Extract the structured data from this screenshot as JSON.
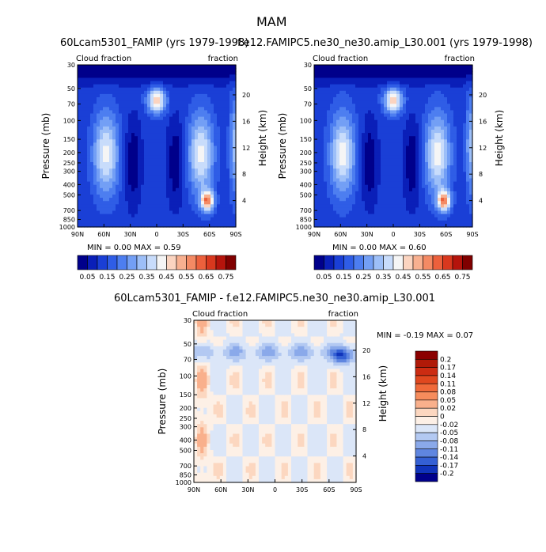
{
  "figure": {
    "title": "MAM"
  },
  "chart_data": [
    {
      "type": "heatmap",
      "title": "60Lcam5301_FAMIP (yrs 1979-1998)",
      "left_label": "Cloud fraction",
      "right_label": "fraction",
      "ylabel": "Pressure (mb)",
      "ylabel_right": "Height (km)",
      "x_ticks": [
        "90N",
        "60N",
        "30N",
        "0",
        "30S",
        "60S",
        "90S"
      ],
      "y_ticks": [
        "30",
        "50",
        "70",
        "100",
        "150",
        "200",
        "250",
        "300",
        "400",
        "500",
        "700",
        "850",
        "1000"
      ],
      "y_right_ticks": [
        "20",
        "16",
        "12",
        "8",
        "4"
      ],
      "min_label": "MIN =",
      "min_value": "0.00",
      "max_label": "MAX =",
      "max_value": "0.59",
      "colorbar_labels": [
        "0.05",
        "0.15",
        "0.25",
        "0.35",
        "0.45",
        "0.55",
        "0.65",
        "0.75"
      ],
      "colors": [
        "#00008b",
        "#0a1fb8",
        "#1a3fd6",
        "#2f5de6",
        "#4d7ef0",
        "#739ff5",
        "#9dbff8",
        "#c8dcfb",
        "#f5f5f5",
        "#fbd4c0",
        "#f8b090",
        "#f48a64",
        "#ec603c",
        "#d9381e",
        "#b5140c",
        "#800000"
      ]
    },
    {
      "type": "heatmap",
      "title": "f.e12.FAMIPC5.ne30_ne30.amip_L30.001 (yrs 1979-1998)",
      "left_label": "Cloud fraction",
      "right_label": "fraction",
      "ylabel": "Pressure (mb)",
      "ylabel_right": "Height (km)",
      "x_ticks": [
        "90N",
        "60N",
        "30N",
        "0",
        "30S",
        "60S",
        "90S"
      ],
      "y_ticks": [
        "30",
        "50",
        "70",
        "100",
        "150",
        "200",
        "250",
        "300",
        "400",
        "500",
        "700",
        "850",
        "1000"
      ],
      "y_right_ticks": [
        "20",
        "16",
        "12",
        "8",
        "4"
      ],
      "min_label": "MIN =",
      "min_value": "0.00",
      "max_label": "MAX =",
      "max_value": "0.60",
      "colorbar_labels": [
        "0.05",
        "0.15",
        "0.25",
        "0.35",
        "0.45",
        "0.55",
        "0.65",
        "0.75"
      ],
      "colors": [
        "#00008b",
        "#0a1fb8",
        "#1a3fd6",
        "#2f5de6",
        "#4d7ef0",
        "#739ff5",
        "#9dbff8",
        "#c8dcfb",
        "#f5f5f5",
        "#fbd4c0",
        "#f8b090",
        "#f48a64",
        "#ec603c",
        "#d9381e",
        "#b5140c",
        "#800000"
      ]
    },
    {
      "type": "heatmap",
      "title": "60Lcam5301_FAMIP - f.e12.FAMIPC5.ne30_ne30.amip_L30.001",
      "left_label": "Cloud fraction",
      "right_label": "fraction",
      "ylabel": "Pressure (mb)",
      "ylabel_right": "Height (km)",
      "x_ticks": [
        "90N",
        "60N",
        "30N",
        "0",
        "30S",
        "60S",
        "90S"
      ],
      "y_ticks": [
        "30",
        "50",
        "70",
        "100",
        "150",
        "200",
        "250",
        "300",
        "400",
        "500",
        "700",
        "850",
        "1000"
      ],
      "y_right_ticks": [
        "20",
        "16",
        "12",
        "8",
        "4"
      ],
      "min_label": "MIN =",
      "min_value": "-0.19",
      "max_label": "MAX =",
      "max_value": "0.07",
      "colorbar_labels": [
        "0.2",
        "0.17",
        "0.14",
        "0.11",
        "0.08",
        "0.05",
        "0.02",
        "0",
        "-0.02",
        "-0.05",
        "-0.08",
        "-0.11",
        "-0.14",
        "-0.17",
        "-0.2"
      ],
      "colors": [
        "#8b0000",
        "#b01a08",
        "#cc2c12",
        "#e0481f",
        "#f06a3a",
        "#f68c5c",
        "#f9b08c",
        "#fcd7c0",
        "#fdf0e6",
        "#dbe6f8",
        "#b3c9f2",
        "#8aa9ea",
        "#5f86e0",
        "#3460d4",
        "#1034bb",
        "#00008b"
      ]
    }
  ]
}
